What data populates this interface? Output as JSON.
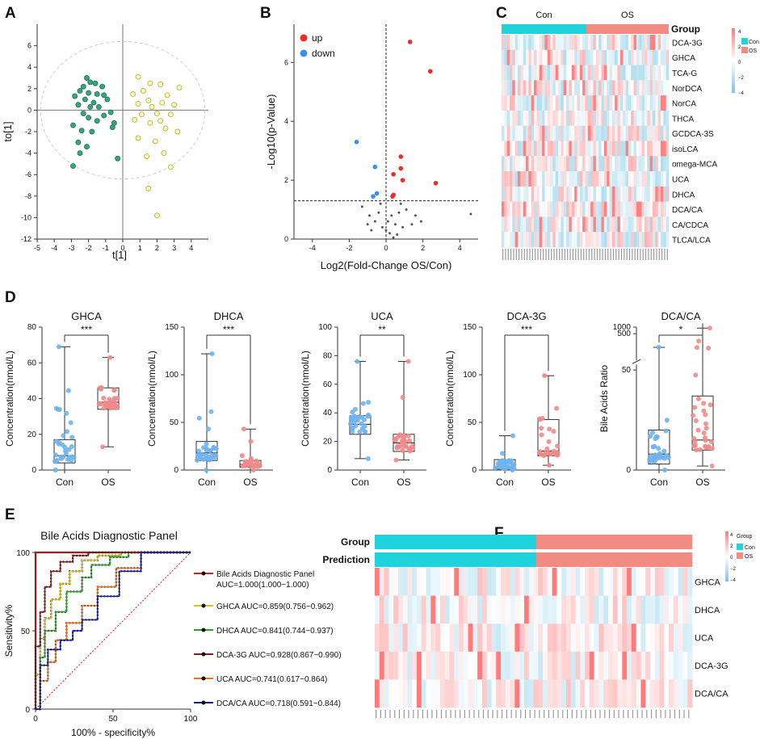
{
  "panel_letters": [
    "A",
    "B",
    "C",
    "D",
    "E",
    "F"
  ],
  "colors": {
    "con_blue": "#6fb3ee",
    "os_red": "#f08a8a",
    "con_dark": "#1fd3dc",
    "os_salmon": "#f28b82",
    "pls_con": "#3aa57a",
    "pls_os": "#e4e36a",
    "up": "#ee2b2b",
    "down": "#3d8ee8",
    "ns": "#555555"
  },
  "chart_data": [
    {
      "id": "A",
      "type": "scatter",
      "title": "",
      "xlabel": "t[1]",
      "ylabel": "to[1]",
      "xlim": [
        -5,
        5
      ],
      "ylim": [
        -12,
        8
      ],
      "xticks": [
        -5,
        -4,
        -3,
        -2,
        -1,
        0,
        1,
        2,
        3,
        4
      ],
      "yticks": [
        -12,
        -10,
        -8,
        -6,
        -4,
        -2,
        0,
        2,
        4,
        6
      ],
      "ellipse": {
        "rx": 4.8,
        "ry": 6.4
      },
      "series": [
        {
          "name": "Con",
          "points": [
            [
              -2.1,
              3
            ],
            [
              -1.9,
              2.6
            ],
            [
              -1.6,
              2.5
            ],
            [
              -2.3,
              2.2
            ],
            [
              -1.2,
              2.2
            ],
            [
              -2.5,
              1.8
            ],
            [
              -2.0,
              1.6
            ],
            [
              -1.5,
              1.5
            ],
            [
              -2.8,
              1.3
            ],
            [
              -1.1,
              1.4
            ],
            [
              -2.2,
              1.0
            ],
            [
              -1.7,
              0.7
            ],
            [
              -0.9,
              1.0
            ],
            [
              -2.6,
              0.5
            ],
            [
              -1.9,
              0.3
            ],
            [
              -1.4,
              0.3
            ],
            [
              -2.3,
              -0.3
            ],
            [
              -1.1,
              -0.5
            ],
            [
              -0.7,
              -0.2
            ],
            [
              -2.0,
              -0.7
            ],
            [
              -1.5,
              -1.0
            ],
            [
              -0.5,
              -1.2
            ],
            [
              -2.9,
              -1.4
            ],
            [
              -2.4,
              -1.9
            ],
            [
              -1.8,
              -2.0
            ],
            [
              -0.6,
              -1.6
            ],
            [
              -2.6,
              -3.0
            ],
            [
              -2.1,
              -3.4
            ],
            [
              -2.5,
              -4.0
            ],
            [
              -0.3,
              -4.5
            ],
            [
              -2.9,
              -5.2
            ]
          ]
        },
        {
          "name": "OS",
          "points": [
            [
              0.9,
              3.1
            ],
            [
              1.6,
              2.5
            ],
            [
              2.2,
              2.4
            ],
            [
              3.3,
              2.1
            ],
            [
              0.6,
              1.5
            ],
            [
              1.2,
              1.8
            ],
            [
              2.6,
              1.4
            ],
            [
              1.5,
              0.9
            ],
            [
              2.3,
              0.7
            ],
            [
              0.9,
              0.6
            ],
            [
              3.0,
              0.5
            ],
            [
              1.7,
              0.3
            ],
            [
              2.0,
              -0.3
            ],
            [
              1.1,
              -0.4
            ],
            [
              2.8,
              -0.4
            ],
            [
              0.7,
              -0.9
            ],
            [
              2.2,
              -1.0
            ],
            [
              1.6,
              -1.2
            ],
            [
              2.5,
              -1.7
            ],
            [
              3.2,
              -2.0
            ],
            [
              0.9,
              -2.6
            ],
            [
              1.9,
              -2.9
            ],
            [
              2.4,
              -4.0
            ],
            [
              1.4,
              -4.3
            ],
            [
              2.8,
              -5.3
            ],
            [
              1.5,
              -7.3
            ],
            [
              2.0,
              -9.8
            ]
          ]
        }
      ]
    },
    {
      "id": "B",
      "type": "scatter",
      "title": "",
      "xlabel": "Log2(Fold-Change OS/Con)",
      "ylabel": "-Log10(p-Value)",
      "xlim": [
        -5,
        5
      ],
      "ylim": [
        0,
        7.3
      ],
      "xticks": [
        -4,
        -2,
        0,
        2,
        4
      ],
      "yticks": [
        0,
        2,
        4,
        6
      ],
      "threshold_y": 1.3,
      "threshold_x": 0,
      "legend": [
        "up",
        "down"
      ],
      "series": [
        {
          "name": "up",
          "points": [
            [
              1.3,
              6.7
            ],
            [
              2.4,
              5.7
            ],
            [
              0.8,
              2.8
            ],
            [
              0.8,
              2.4
            ],
            [
              0.9,
              2.0
            ],
            [
              0.4,
              2.2
            ],
            [
              2.7,
              1.9
            ],
            [
              0.4,
              1.5
            ],
            [
              0.35,
              1.45
            ]
          ]
        },
        {
          "name": "down",
          "points": [
            [
              -1.6,
              3.3
            ],
            [
              -0.6,
              2.45
            ],
            [
              -0.5,
              1.55
            ],
            [
              -0.7,
              1.45
            ]
          ]
        },
        {
          "name": "ns",
          "points": [
            [
              -1.3,
              1.1
            ],
            [
              -0.9,
              0.8
            ],
            [
              -0.6,
              0.6
            ],
            [
              -0.4,
              0.9
            ],
            [
              -0.2,
              0.4
            ],
            [
              0.0,
              0.3
            ],
            [
              0.1,
              0.6
            ],
            [
              0.2,
              0.2
            ],
            [
              0.3,
              0.8
            ],
            [
              0.5,
              0.5
            ],
            [
              0.6,
              0.15
            ],
            [
              0.7,
              0.9
            ],
            [
              0.9,
              0.4
            ],
            [
              1.1,
              1.0
            ],
            [
              1.4,
              0.5
            ],
            [
              1.6,
              0.8
            ],
            [
              1.9,
              0.6
            ],
            [
              -0.8,
              0.3
            ],
            [
              -1.0,
              0.5
            ],
            [
              0.8,
              1.2
            ],
            [
              4.6,
              0.85
            ],
            [
              -0.3,
              1.2
            ],
            [
              0.4,
              0.05
            ]
          ]
        }
      ]
    },
    {
      "id": "C",
      "type": "heatmap",
      "title": "",
      "column_groups": [
        "Con",
        "OS"
      ],
      "group_label": "Group",
      "rows": [
        "DCA-3G",
        "GHCA",
        "TCA-G",
        "NorDCA",
        "NorCA",
        "THCA",
        "GCDCA-3S",
        "isoLCA",
        "omega-MCA",
        "UCA",
        "DHCA",
        "DCA/CA",
        "CA/CDCA",
        "TLCA/LCA"
      ],
      "scale": [
        4,
        2,
        0,
        -2,
        -4
      ],
      "legend": [
        "Con",
        "OS"
      ]
    },
    {
      "id": "D1",
      "type": "box",
      "title": "GHCA",
      "ylabel": "Concentration(nmol/L)",
      "categories": [
        "Con",
        "OS"
      ],
      "ylim": [
        0,
        80
      ],
      "yticks": [
        0,
        20,
        40,
        60,
        80
      ],
      "significance": "***",
      "boxes": [
        {
          "min": 0,
          "q1": 4,
          "median": 8,
          "q3": 17,
          "max": 69
        },
        {
          "min": 13,
          "q1": 34,
          "median": 38,
          "q3": 46,
          "max": 63
        }
      ]
    },
    {
      "id": "D2",
      "type": "box",
      "title": "DHCA",
      "ylabel": "Concentration(nmol/L)",
      "categories": [
        "Con",
        "OS"
      ],
      "ylim": [
        0,
        150
      ],
      "yticks": [
        0,
        50,
        100,
        150
      ],
      "significance": "***",
      "boxes": [
        {
          "min": 0,
          "q1": 10,
          "median": 18,
          "q3": 30,
          "max": 122
        },
        {
          "min": 0,
          "q1": 3,
          "median": 6,
          "q3": 10,
          "max": 43
        }
      ]
    },
    {
      "id": "D3",
      "type": "box",
      "title": "UCA",
      "ylabel": "Concentration(nmol/L)",
      "categories": [
        "Con",
        "OS"
      ],
      "ylim": [
        0,
        100
      ],
      "yticks": [
        0,
        20,
        40,
        60,
        80,
        100
      ],
      "significance": "**",
      "boxes": [
        {
          "min": 8,
          "q1": 25,
          "median": 32,
          "q3": 38,
          "max": 76
        },
        {
          "min": 7,
          "q1": 13,
          "median": 19,
          "q3": 25,
          "max": 76
        }
      ]
    },
    {
      "id": "D4",
      "type": "box",
      "title": "DCA-3G",
      "ylabel": "Concentration(nmol/L)",
      "categories": [
        "Con",
        "OS"
      ],
      "ylim": [
        0,
        150
      ],
      "yticks": [
        0,
        50,
        100,
        150
      ],
      "significance": "***",
      "boxes": [
        {
          "min": 0,
          "q1": 1,
          "median": 3,
          "q3": 11,
          "max": 36
        },
        {
          "min": 5,
          "q1": 15,
          "median": 20,
          "q3": 53,
          "max": 99
        }
      ]
    },
    {
      "id": "D5",
      "type": "box",
      "title": "DCA/CA",
      "ylabel": "Bile Acids Ratio",
      "categories": [
        "Con",
        "OS"
      ],
      "ylim": [
        0,
        1000
      ],
      "yticks": [
        0,
        50,
        500,
        1000
      ],
      "significance": "*",
      "broken_axis": true,
      "boxes": [
        {
          "min": 0,
          "q1": 3,
          "median": 8,
          "q3": 20,
          "max": 120
        },
        {
          "min": 2,
          "q1": 10,
          "median": 15,
          "q3": 37,
          "max": 900
        }
      ]
    },
    {
      "id": "E",
      "type": "line",
      "title": "Bile Acids Diagnostic Panel",
      "xlabel": "100% - specificity%",
      "ylabel": "Sensitivity%",
      "xlim": [
        0,
        100
      ],
      "ylim": [
        0,
        100
      ],
      "xticks": [
        0,
        50,
        100
      ],
      "yticks": [
        0,
        50,
        100
      ],
      "series": [
        {
          "name": "Bile Acids Diagnostic Panel AUC=1.000(1.000~1.000)",
          "color": "#e11a1a",
          "x": [
            0,
            0,
            100
          ],
          "y": [
            0,
            100,
            100
          ]
        },
        {
          "name": "GHCA AUC=0.859(0.756~0.962)",
          "color": "#d8c21c",
          "x": [
            0,
            0,
            3,
            3,
            6,
            6,
            10,
            10,
            16,
            16,
            22,
            22,
            30,
            30,
            40,
            40,
            55,
            55,
            100
          ],
          "y": [
            0,
            22,
            22,
            45,
            45,
            58,
            58,
            70,
            70,
            80,
            80,
            88,
            88,
            95,
            95,
            98,
            98,
            100,
            100
          ]
        },
        {
          "name": "DHCA AUC=0.841(0.744~0.937)",
          "color": "#2ca02c",
          "x": [
            0,
            3,
            3,
            6,
            6,
            13,
            13,
            20,
            20,
            30,
            30,
            36,
            36,
            48,
            48,
            60,
            60,
            100
          ],
          "y": [
            0,
            0,
            33,
            33,
            50,
            50,
            62,
            62,
            75,
            75,
            84,
            84,
            92,
            92,
            97,
            97,
            100,
            100
          ]
        },
        {
          "name": "DCA-3G AUC=0.928(0.867~0.990)",
          "color": "#8b1a1a",
          "x": [
            0,
            0,
            3,
            3,
            6,
            6,
            10,
            10,
            16,
            16,
            24,
            24,
            34,
            34,
            100
          ],
          "y": [
            0,
            40,
            40,
            62,
            62,
            78,
            78,
            88,
            88,
            94,
            94,
            98,
            98,
            100,
            100
          ]
        },
        {
          "name": "UCA AUC=0.741(0.617~0.864)",
          "color": "#e8731c",
          "x": [
            0,
            3,
            3,
            8,
            8,
            13,
            13,
            20,
            20,
            30,
            30,
            40,
            40,
            52,
            52,
            68,
            68,
            100
          ],
          "y": [
            0,
            0,
            18,
            18,
            30,
            30,
            44,
            44,
            55,
            55,
            66,
            66,
            78,
            78,
            90,
            90,
            100,
            100
          ]
        },
        {
          "name": "DCA/CA AUC=0.718(0.591~0.844)",
          "color": "#1a1a9e",
          "x": [
            0,
            3,
            3,
            8,
            8,
            16,
            16,
            24,
            24,
            30,
            30,
            40,
            40,
            54,
            54,
            68,
            68,
            100
          ],
          "y": [
            0,
            0,
            28,
            28,
            38,
            38,
            44,
            44,
            50,
            50,
            57,
            57,
            72,
            72,
            88,
            88,
            100,
            100
          ]
        }
      ]
    },
    {
      "id": "F",
      "type": "heatmap",
      "title": "",
      "annotation_rows": [
        "Group",
        "Prediction"
      ],
      "rows": [
        "GHCA",
        "DHCA",
        "UCA",
        "DCA-3G",
        "DCA/CA"
      ],
      "scale": [
        4,
        2,
        0,
        -2,
        -4
      ],
      "legend_title": "Group",
      "legend": [
        "Con",
        "OS"
      ]
    }
  ]
}
